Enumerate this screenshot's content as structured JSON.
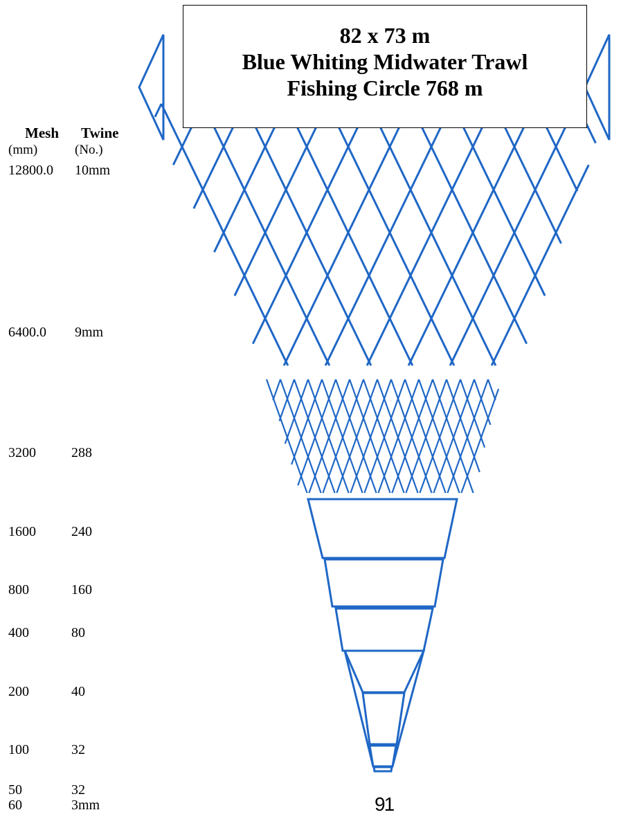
{
  "title": {
    "line1": "82 x 73 m",
    "line2": "Blue Whiting Midwater Trawl",
    "line3": "Fishing Circle 768 m"
  },
  "headers": {
    "mesh": "Mesh",
    "twine": "Twine",
    "mesh_unit": "(mm)",
    "twine_unit": "(No.)"
  },
  "rows": [
    {
      "mesh": "12800.0",
      "twine": "10mm"
    },
    {
      "mesh": "6400.0",
      "twine": "9mm"
    },
    {
      "mesh": "3200",
      "twine": "288"
    },
    {
      "mesh": "1600",
      "twine": "240"
    },
    {
      "mesh": "800",
      "twine": "160"
    },
    {
      "mesh": "400",
      "twine": "80"
    },
    {
      "mesh": "200",
      "twine": "40"
    },
    {
      "mesh": "100",
      "twine": "32"
    },
    {
      "mesh": "50",
      "twine": "32"
    },
    {
      "mesh": "60",
      "twine": "3mm"
    }
  ],
  "codend_label": "91",
  "colors": {
    "net_line": "#1f67c6",
    "text": "#000000"
  }
}
